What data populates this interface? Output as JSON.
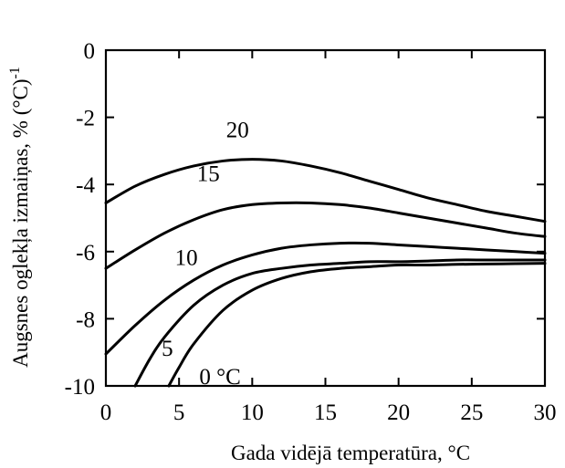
{
  "chart_data": {
    "type": "line",
    "xlabel": "Gada vidējā temperatūra, °C",
    "ylabel": "Augsnes oglekļa izmaiņas, % (°C)",
    "ylabel_superscript": "-1",
    "xlim": [
      0,
      30
    ],
    "ylim": [
      -10,
      0
    ],
    "x_ticks": [
      0,
      5,
      10,
      15,
      20,
      25,
      30
    ],
    "y_ticks": [
      0,
      -2,
      -4,
      -6,
      -8,
      -10
    ],
    "x_tick_labels": [
      "0",
      "5",
      "10",
      "15",
      "20",
      "25",
      "30"
    ],
    "y_tick_labels": [
      "0",
      "-2",
      "-4",
      "-6",
      "-8",
      "-10"
    ],
    "grid": false,
    "legend": "none",
    "series": [
      {
        "name": "20",
        "label_at": [
          9.0,
          -2.6
        ],
        "points": [
          [
            0,
            -4.55
          ],
          [
            2,
            -4.05
          ],
          [
            4,
            -3.7
          ],
          [
            6,
            -3.45
          ],
          [
            8,
            -3.3
          ],
          [
            10,
            -3.25
          ],
          [
            12,
            -3.3
          ],
          [
            14,
            -3.45
          ],
          [
            16,
            -3.65
          ],
          [
            18,
            -3.9
          ],
          [
            20,
            -4.15
          ],
          [
            22,
            -4.4
          ],
          [
            24,
            -4.6
          ],
          [
            26,
            -4.8
          ],
          [
            28,
            -4.95
          ],
          [
            30,
            -5.1
          ]
        ]
      },
      {
        "name": "15",
        "label_at": [
          7.0,
          -3.9
        ],
        "points": [
          [
            0,
            -6.5
          ],
          [
            2,
            -5.95
          ],
          [
            4,
            -5.45
          ],
          [
            6,
            -5.05
          ],
          [
            8,
            -4.75
          ],
          [
            10,
            -4.6
          ],
          [
            12,
            -4.55
          ],
          [
            14,
            -4.55
          ],
          [
            16,
            -4.6
          ],
          [
            18,
            -4.7
          ],
          [
            20,
            -4.85
          ],
          [
            22,
            -5.0
          ],
          [
            24,
            -5.15
          ],
          [
            26,
            -5.3
          ],
          [
            28,
            -5.45
          ],
          [
            30,
            -5.55
          ]
        ]
      },
      {
        "name": "10",
        "label_at": [
          5.5,
          -6.4
        ],
        "points": [
          [
            0,
            -9.05
          ],
          [
            2,
            -8.2
          ],
          [
            4,
            -7.45
          ],
          [
            6,
            -6.85
          ],
          [
            8,
            -6.4
          ],
          [
            10,
            -6.1
          ],
          [
            12,
            -5.9
          ],
          [
            14,
            -5.8
          ],
          [
            16,
            -5.75
          ],
          [
            18,
            -5.75
          ],
          [
            20,
            -5.8
          ],
          [
            22,
            -5.85
          ],
          [
            24,
            -5.9
          ],
          [
            26,
            -5.95
          ],
          [
            28,
            -6.0
          ],
          [
            30,
            -6.05
          ]
        ]
      },
      {
        "name": "5",
        "label_at": [
          4.2,
          -9.1
        ],
        "points": [
          [
            2.0,
            -10.0
          ],
          [
            3,
            -9.2
          ],
          [
            4,
            -8.55
          ],
          [
            6,
            -7.6
          ],
          [
            8,
            -7.0
          ],
          [
            10,
            -6.65
          ],
          [
            12,
            -6.5
          ],
          [
            14,
            -6.4
          ],
          [
            16,
            -6.35
          ],
          [
            18,
            -6.3
          ],
          [
            20,
            -6.3
          ],
          [
            22,
            -6.28
          ],
          [
            24,
            -6.25
          ],
          [
            26,
            -6.25
          ],
          [
            28,
            -6.25
          ],
          [
            30,
            -6.25
          ]
        ]
      },
      {
        "name": "0 °C",
        "label_at": [
          7.8,
          -9.95
        ],
        "points": [
          [
            4.3,
            -10.0
          ],
          [
            5,
            -9.45
          ],
          [
            6,
            -8.75
          ],
          [
            8,
            -7.75
          ],
          [
            10,
            -7.15
          ],
          [
            12,
            -6.8
          ],
          [
            14,
            -6.6
          ],
          [
            16,
            -6.5
          ],
          [
            18,
            -6.45
          ],
          [
            20,
            -6.4
          ],
          [
            22,
            -6.4
          ],
          [
            24,
            -6.38
          ],
          [
            26,
            -6.37
          ],
          [
            28,
            -6.36
          ],
          [
            30,
            -6.35
          ]
        ]
      }
    ]
  }
}
